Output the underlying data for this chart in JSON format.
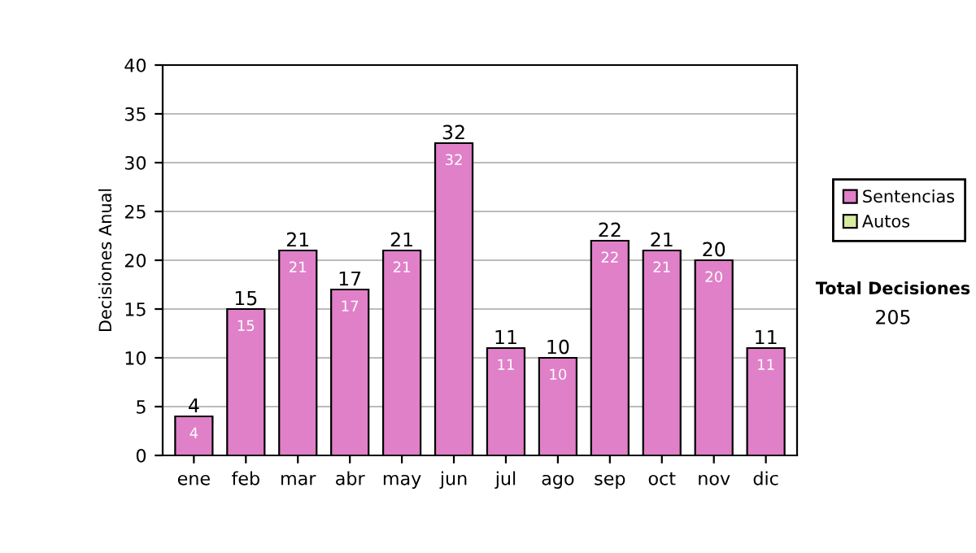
{
  "chart_data": {
    "type": "bar",
    "ylabel": "Decisiones Anual",
    "stacked": true,
    "categories": [
      "ene",
      "feb",
      "mar",
      "abr",
      "may",
      "jun",
      "jul",
      "ago",
      "sep",
      "oct",
      "nov",
      "dic"
    ],
    "series": [
      {
        "name": "Sentencias",
        "color": "#e080c8",
        "values": [
          4,
          15,
          21,
          17,
          21,
          32,
          11,
          10,
          22,
          21,
          20,
          11
        ],
        "value_labels": [
          "4",
          "15",
          "21",
          "17",
          "21",
          "32",
          "11",
          "10",
          "22",
          "21",
          "20",
          "11"
        ]
      },
      {
        "name": "Autos",
        "color": "#d8eca0",
        "values": [
          null,
          null,
          null,
          null,
          null,
          null,
          null,
          null,
          null,
          null,
          null,
          null
        ]
      }
    ],
    "totals": [
      "4",
      "15",
      "21",
      "17",
      "21",
      "32",
      "11",
      "10",
      "22",
      "21",
      "20",
      "11"
    ],
    "ylim": [
      0,
      40
    ],
    "yticks": [
      0,
      5,
      10,
      15,
      20,
      25,
      30,
      35,
      40
    ],
    "grid": "y",
    "legend": "right",
    "annotations": [
      "Total Decisiones",
      "205"
    ]
  }
}
